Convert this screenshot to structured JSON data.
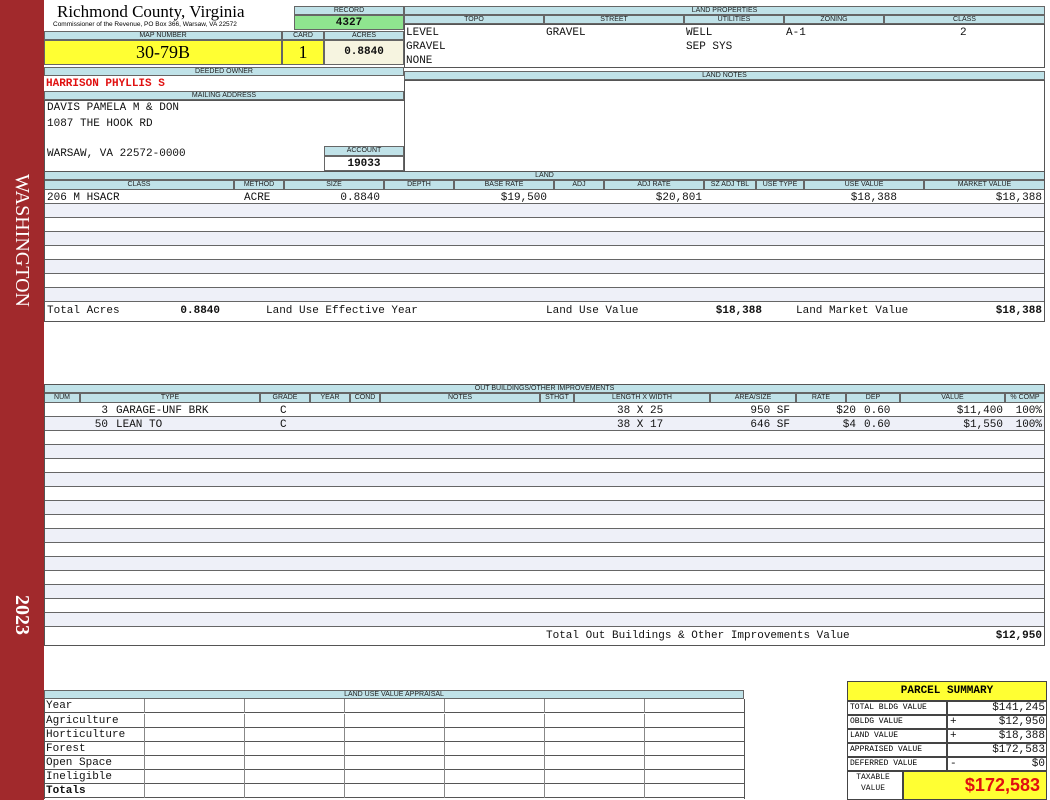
{
  "sidebar": {
    "district": "WASHINGTON",
    "year": "2023"
  },
  "header": {
    "county": "Richmond County, Virginia",
    "office": "Commissioner of the Revenue, PO Box 366, Warsaw, VA 22572",
    "record_label": "RECORD",
    "record": "4327",
    "map_number_label": "MAP NUMBER",
    "map_number": "30-79B",
    "card_label": "CARD",
    "card": "1",
    "acres_label": "ACRES",
    "acres": "0.8840"
  },
  "land_properties": {
    "title": "LAND PROPERTIES",
    "headers": [
      "TOPO",
      "STREET",
      "UTILITIES",
      "ZONING",
      "CLASS"
    ],
    "topo": [
      "LEVEL",
      "GRAVEL",
      "NONE"
    ],
    "street": [
      "GRAVEL"
    ],
    "utilities": [
      "WELL",
      "SEP SYS"
    ],
    "zoning": [
      "A-1"
    ],
    "class": [
      "2"
    ]
  },
  "land_notes": {
    "title": "LAND NOTES"
  },
  "owner": {
    "deeded_owner_label": "DEEDED OWNER",
    "deeded_owner": "HARRISON PHYLLIS S",
    "mailing_label": "MAILING ADDRESS",
    "mailing": [
      "DAVIS PAMELA M & DON",
      "1087 THE HOOK RD",
      "WARSAW, VA 22572-0000"
    ],
    "account_label": "ACCOUNT",
    "account": "19033"
  },
  "land": {
    "title": "LAND",
    "headers": [
      "CLASS",
      "METHOD",
      "SIZE",
      "DEPTH",
      "BASE RATE",
      "ADJ",
      "ADJ RATE",
      "SZ ADJ TBL",
      "USE TYPE",
      "USE VALUE",
      "MARKET VALUE"
    ],
    "rows": [
      {
        "class": "206 M HSACR",
        "method": "ACRE",
        "size": "0.8840",
        "base_rate": "$19,500",
        "adj_rate": "$20,801",
        "use_value": "$18,388",
        "market_value": "$18,388"
      }
    ],
    "totals": {
      "total_acres_label": "Total Acres",
      "total_acres": "0.8840",
      "effective_year_label": "Land Use Effective Year",
      "use_value_label": "Land Use Value",
      "use_value": "$18,388",
      "market_value_label": "Land Market Value",
      "market_value": "$18,388"
    }
  },
  "outbuildings": {
    "title": "OUT BUILDINGS/OTHER IMPROVEMENTS",
    "headers": [
      "NUM",
      "TYPE",
      "GRADE",
      "YEAR",
      "COND",
      "NOTES",
      "STHGT",
      "LENGTH X WIDTH",
      "AREA/SIZE",
      "RATE",
      "DEP",
      "VALUE",
      "% COMP"
    ],
    "rows": [
      {
        "num": "3",
        "type": "GARAGE-UNF BRK",
        "grade": "C",
        "dims": "38 X 25",
        "area": "950 SF",
        "rate": "$20",
        "dep": "0.60",
        "value": "$11,400",
        "comp": "100%"
      },
      {
        "num": "50",
        "type": "LEAN TO",
        "grade": "C",
        "dims": "38 X 17",
        "area": "646 SF",
        "rate": "$4",
        "dep": "0.60",
        "value": "$1,550",
        "comp": "100%"
      }
    ],
    "total_label": "Total Out Buildings & Other Improvements Value",
    "total": "$12,950"
  },
  "land_use_appraisal": {
    "title": "LAND USE VALUE APPRAISAL",
    "rows": [
      "Year",
      "Agriculture",
      "Horticulture",
      "Forest",
      "Open Space",
      "Ineligible",
      "Totals"
    ]
  },
  "parcel_summary": {
    "title": "PARCEL SUMMARY",
    "rows": [
      {
        "label": "TOTAL BLDG VALUE",
        "value": "$141,245"
      },
      {
        "label": "OBLDG VALUE",
        "op": "+",
        "value": "$12,950"
      },
      {
        "label": "LAND VALUE",
        "op": "+",
        "value": "$18,388"
      },
      {
        "label": "APPRAISED VALUE",
        "value": "$172,583"
      },
      {
        "label": "DEFERRED VALUE",
        "op": "-",
        "value": "$0"
      }
    ],
    "taxable_label": [
      "TAXABLE",
      "VALUE"
    ],
    "taxable": "$172,583"
  }
}
